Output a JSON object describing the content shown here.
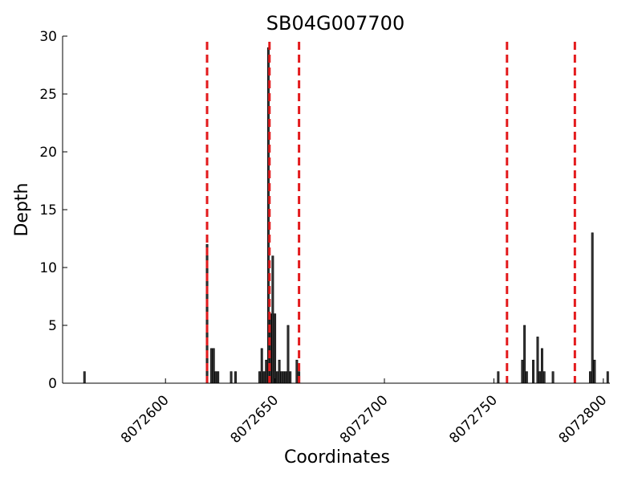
{
  "chart_data": {
    "type": "bar",
    "title": "SB04G007700",
    "xlabel": "Coordinates",
    "ylabel": "Depth",
    "xlim": [
      8072553,
      8072803
    ],
    "ylim": [
      0,
      30
    ],
    "xticks": [
      8072600,
      8072650,
      8072700,
      8072750,
      8072800
    ],
    "yticks": [
      0,
      5,
      10,
      15,
      20,
      25,
      30
    ],
    "grid": false,
    "bar_color": "#333333",
    "bars": [
      {
        "x": 8072563,
        "y": 1
      },
      {
        "x": 8072619,
        "y": 12
      },
      {
        "x": 8072621,
        "y": 3
      },
      {
        "x": 8072622,
        "y": 3
      },
      {
        "x": 8072623,
        "y": 1
      },
      {
        "x": 8072624,
        "y": 1
      },
      {
        "x": 8072630,
        "y": 1
      },
      {
        "x": 8072632,
        "y": 1
      },
      {
        "x": 8072643,
        "y": 1
      },
      {
        "x": 8072644,
        "y": 3
      },
      {
        "x": 8072645,
        "y": 1
      },
      {
        "x": 8072646,
        "y": 2
      },
      {
        "x": 8072647,
        "y": 29
      },
      {
        "x": 8072648,
        "y": 6
      },
      {
        "x": 8072649,
        "y": 11
      },
      {
        "x": 8072650,
        "y": 6
      },
      {
        "x": 8072651,
        "y": 1
      },
      {
        "x": 8072652,
        "y": 2
      },
      {
        "x": 8072653,
        "y": 1
      },
      {
        "x": 8072654,
        "y": 1
      },
      {
        "x": 8072655,
        "y": 1
      },
      {
        "x": 8072656,
        "y": 5
      },
      {
        "x": 8072657,
        "y": 1
      },
      {
        "x": 8072660,
        "y": 2
      },
      {
        "x": 8072661,
        "y": 1
      },
      {
        "x": 8072752,
        "y": 1
      },
      {
        "x": 8072763,
        "y": 2
      },
      {
        "x": 8072764,
        "y": 5
      },
      {
        "x": 8072765,
        "y": 1
      },
      {
        "x": 8072768,
        "y": 2
      },
      {
        "x": 8072770,
        "y": 4
      },
      {
        "x": 8072771,
        "y": 1
      },
      {
        "x": 8072772,
        "y": 3
      },
      {
        "x": 8072773,
        "y": 1
      },
      {
        "x": 8072777,
        "y": 1
      },
      {
        "x": 8072794,
        "y": 1
      },
      {
        "x": 8072795,
        "y": 13
      },
      {
        "x": 8072796,
        "y": 2
      },
      {
        "x": 8072802,
        "y": 1
      }
    ],
    "markers": {
      "style": "dashed",
      "color": "#e31a1c",
      "x": [
        8072619,
        8072647.5,
        8072661,
        8072756,
        8072787
      ]
    }
  }
}
